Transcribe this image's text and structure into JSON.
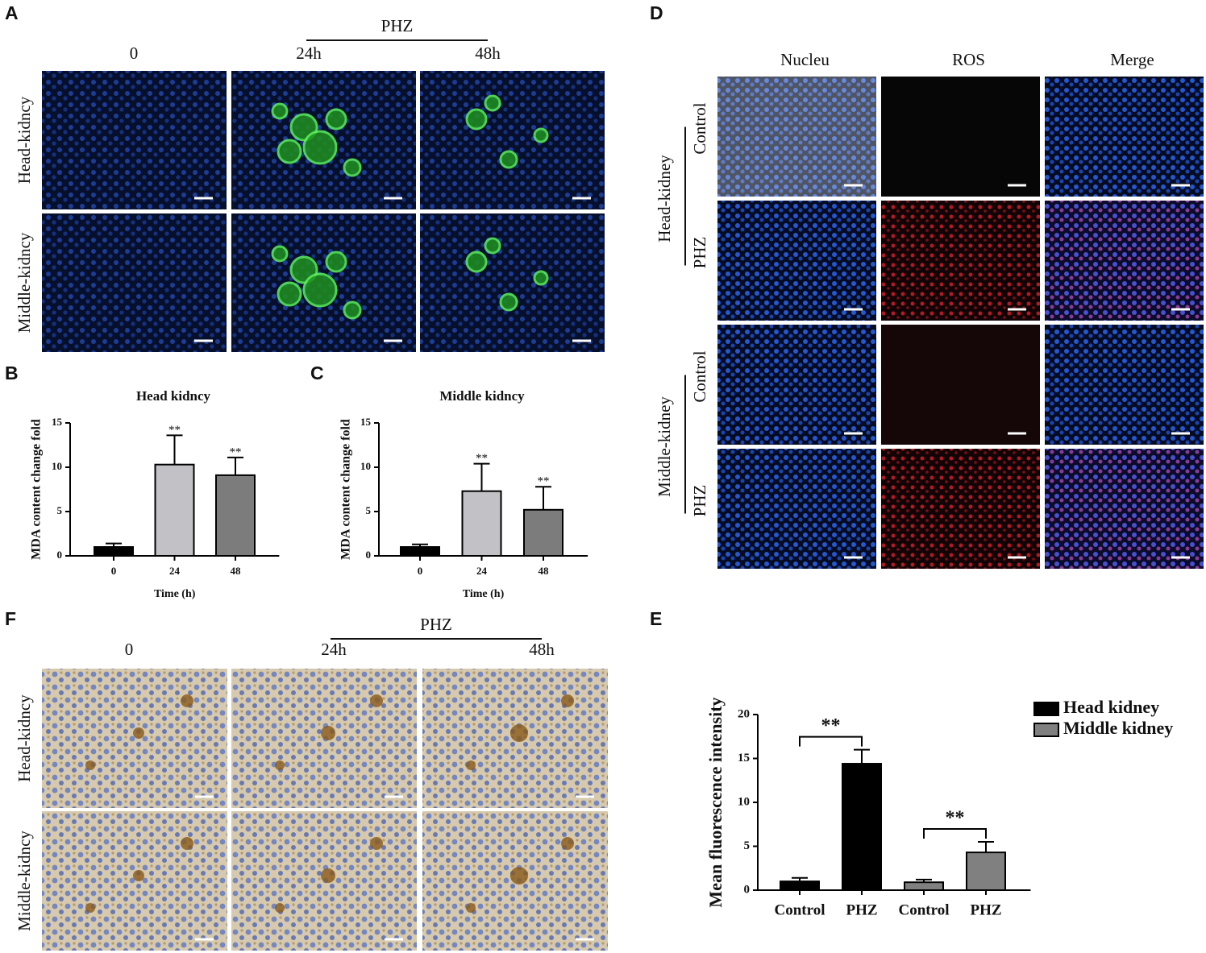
{
  "panel_a": {
    "letter": "A",
    "group": "PHZ",
    "columns": [
      "0",
      "24h",
      "48h"
    ],
    "rows": [
      "Head-kidncy",
      "Middle-kidncy"
    ]
  },
  "panel_d": {
    "letter": "D",
    "columns": [
      "Nucleu",
      "ROS",
      "Merge"
    ],
    "groups": [
      {
        "name": "Head-kidney",
        "rows": [
          "Control",
          "PHZ"
        ]
      },
      {
        "name": "Middle-kidney",
        "rows": [
          "Control",
          "PHZ"
        ]
      }
    ]
  },
  "panel_f": {
    "letter": "F",
    "group": "PHZ",
    "columns": [
      "0",
      "24h",
      "48h"
    ],
    "rows": [
      "Head-kidncy",
      "Middle-kidncy"
    ]
  },
  "chart_data": [
    {
      "type": "bar",
      "letter": "B",
      "title": "Head kidncy",
      "x_label": "Time (h)",
      "y_label": "MDA content change fold",
      "categories": [
        "0",
        "24",
        "48"
      ],
      "values": [
        1.0,
        10.3,
        9.1
      ],
      "errors": [
        0.4,
        3.3,
        2.0
      ],
      "colors": [
        "#000000",
        "#c2c2c6",
        "#7c7c7c"
      ],
      "annotations": [
        {
          "category": "24",
          "text": "**"
        },
        {
          "category": "48",
          "text": "**"
        }
      ],
      "ylim": [
        0,
        15
      ],
      "yticks": [
        0,
        5,
        10,
        15
      ]
    },
    {
      "type": "bar",
      "letter": "C",
      "title": "Middle kidncy",
      "x_label": "Time (h)",
      "y_label": "MDA content change fold",
      "categories": [
        "0",
        "24",
        "48"
      ],
      "values": [
        1.0,
        7.3,
        5.2
      ],
      "errors": [
        0.3,
        3.1,
        2.6
      ],
      "colors": [
        "#000000",
        "#c2c2c6",
        "#7c7c7c"
      ],
      "annotations": [
        {
          "category": "24",
          "text": "**"
        },
        {
          "category": "48",
          "text": "**"
        }
      ],
      "ylim": [
        0,
        15
      ],
      "yticks": [
        0,
        5,
        10,
        15
      ]
    },
    {
      "type": "grouped_bar",
      "letter": "E",
      "y_label": "Mean fluorescence intensity",
      "categories": [
        "Control",
        "PHZ",
        "Control",
        "PHZ"
      ],
      "series": [
        {
          "name": "Head kidney",
          "color": "#000000",
          "values": [
            1.0,
            14.4,
            null,
            null
          ],
          "errors": [
            0.4,
            1.6,
            null,
            null
          ]
        },
        {
          "name": "Middle kidney",
          "color": "#808080",
          "values": [
            null,
            null,
            0.9,
            4.3
          ],
          "errors": [
            null,
            null,
            0.3,
            1.2
          ]
        }
      ],
      "comparisons": [
        {
          "series": "Head kidney",
          "label": "**"
        },
        {
          "series": "Middle kidney",
          "label": "**"
        }
      ],
      "legend": "top-right",
      "ylim": [
        0,
        20
      ],
      "yticks": [
        0,
        5,
        10,
        15,
        20
      ]
    }
  ]
}
